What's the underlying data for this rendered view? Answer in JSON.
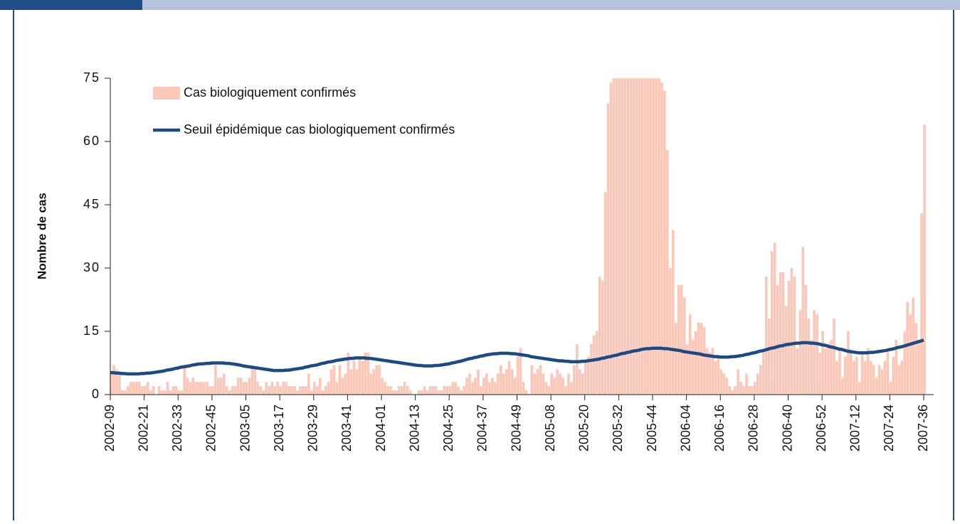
{
  "chart_data": {
    "type": "bar-line",
    "ylabel": "Nombre de cas",
    "ylim": [
      0,
      75
    ],
    "yticks": [
      0,
      15,
      30,
      45,
      60,
      75
    ],
    "categories": [
      "2002-09",
      null,
      null,
      null,
      null,
      null,
      null,
      null,
      null,
      null,
      null,
      null,
      "2002-21",
      null,
      null,
      null,
      null,
      null,
      null,
      null,
      null,
      null,
      null,
      null,
      "2002-33",
      null,
      null,
      null,
      null,
      null,
      null,
      null,
      null,
      null,
      null,
      null,
      "2002-45",
      null,
      null,
      null,
      null,
      null,
      null,
      null,
      null,
      null,
      null,
      null,
      "2003-05",
      null,
      null,
      null,
      null,
      null,
      null,
      null,
      null,
      null,
      null,
      null,
      "2003-17",
      null,
      null,
      null,
      null,
      null,
      null,
      null,
      null,
      null,
      null,
      null,
      "2003-29",
      null,
      null,
      null,
      null,
      null,
      null,
      null,
      null,
      null,
      null,
      null,
      "2003-41",
      null,
      null,
      null,
      null,
      null,
      null,
      null,
      null,
      null,
      null,
      null,
      "2004-01",
      null,
      null,
      null,
      null,
      null,
      null,
      null,
      null,
      null,
      null,
      null,
      "2004-13",
      null,
      null,
      null,
      null,
      null,
      null,
      null,
      null,
      null,
      null,
      null,
      "2004-25",
      null,
      null,
      null,
      null,
      null,
      null,
      null,
      null,
      null,
      null,
      null,
      "2004-37",
      null,
      null,
      null,
      null,
      null,
      null,
      null,
      null,
      null,
      null,
      null,
      "2004-49",
      null,
      null,
      null,
      null,
      null,
      null,
      null,
      null,
      null,
      null,
      null,
      "2005-08",
      null,
      null,
      null,
      null,
      null,
      null,
      null,
      null,
      null,
      null,
      null,
      "2005-20",
      null,
      null,
      null,
      null,
      null,
      null,
      null,
      null,
      null,
      null,
      null,
      "2005-32",
      null,
      null,
      null,
      null,
      null,
      null,
      null,
      null,
      null,
      null,
      null,
      "2005-44",
      null,
      null,
      null,
      null,
      null,
      null,
      null,
      null,
      null,
      null,
      null,
      "2006-04",
      null,
      null,
      null,
      null,
      null,
      null,
      null,
      null,
      null,
      null,
      null,
      "2006-16",
      null,
      null,
      null,
      null,
      null,
      null,
      null,
      null,
      null,
      null,
      null,
      "2006-28",
      null,
      null,
      null,
      null,
      null,
      null,
      null,
      null,
      null,
      null,
      null,
      "2006-40",
      null,
      null,
      null,
      null,
      null,
      null,
      null,
      null,
      null,
      null,
      null,
      "2006-52",
      null,
      null,
      null,
      null,
      null,
      null,
      null,
      null,
      null,
      null,
      null,
      "2007-12",
      null,
      null,
      null,
      null,
      null,
      null,
      null,
      null,
      null,
      null,
      null,
      "2007-24",
      null,
      null,
      null,
      null,
      null,
      null,
      null,
      null,
      null,
      null,
      null,
      "2007-36"
    ],
    "series": [
      {
        "name": "Cas biologiquement confirmés",
        "kind": "bar",
        "color": "#f9c8b8",
        "values": [
          5,
          7,
          6,
          5,
          1,
          1,
          2,
          3,
          3,
          3,
          3,
          2,
          2,
          3,
          1,
          2,
          0,
          2,
          1,
          1,
          3,
          1,
          2,
          2,
          1,
          1,
          7,
          4,
          3,
          4,
          3,
          3,
          3,
          3,
          3,
          2,
          2,
          7,
          4,
          4,
          5,
          2,
          1,
          2,
          2,
          4,
          4,
          3,
          3,
          4,
          7,
          6,
          3,
          2,
          1,
          3,
          2,
          3,
          2,
          3,
          2,
          3,
          3,
          2,
          2,
          2,
          1,
          2,
          2,
          2,
          5,
          1,
          3,
          2,
          4,
          1,
          2,
          3,
          6,
          7,
          3,
          7,
          4,
          5,
          10,
          6,
          8,
          6,
          9,
          8,
          10,
          10,
          5,
          6,
          7,
          7,
          4,
          3,
          2,
          2,
          1,
          1,
          2,
          2,
          3,
          2,
          1,
          0,
          0,
          1,
          1,
          2,
          1,
          2,
          2,
          2,
          1,
          1,
          2,
          2,
          2,
          3,
          3,
          2,
          1,
          2,
          4,
          5,
          3,
          4,
          6,
          2,
          4,
          5,
          3,
          4,
          3,
          5,
          7,
          5,
          6,
          8,
          6,
          4,
          9,
          11,
          3,
          1,
          0,
          7,
          5,
          6,
          7,
          5,
          3,
          2,
          5,
          4,
          6,
          5,
          4,
          2,
          5,
          3,
          7,
          12,
          6,
          5,
          8,
          9,
          12,
          14,
          15,
          28,
          27,
          48,
          69,
          74,
          75,
          75,
          75,
          75,
          75,
          75,
          75,
          75,
          75,
          75,
          75,
          75,
          75,
          75,
          75,
          75,
          75,
          74,
          72,
          58,
          30,
          39,
          17,
          26,
          26,
          23,
          12,
          19,
          13,
          15,
          17,
          17,
          16,
          11,
          10,
          11,
          8,
          9,
          6,
          5,
          4,
          2,
          1,
          2,
          6,
          3,
          2,
          5,
          2,
          2,
          3,
          5,
          7,
          10,
          28,
          18,
          34,
          36,
          26,
          29,
          29,
          21,
          27,
          30,
          28,
          11,
          20,
          35,
          26,
          18,
          13,
          20,
          19,
          10,
          15,
          11,
          12,
          13,
          18,
          8,
          11,
          4,
          9,
          15,
          10,
          8,
          9,
          3,
          10,
          8,
          11,
          8,
          7,
          4,
          7,
          6,
          8,
          10,
          3,
          9,
          13,
          7,
          8,
          15,
          22,
          19,
          23,
          17,
          13,
          43,
          64
        ]
      },
      {
        "name": "Seuil épidémique cas biologiquement confirmés",
        "kind": "line",
        "color": "#1d4a82",
        "values": [
          5.2,
          5.2,
          5.1,
          5.1,
          5.0,
          5.0,
          4.9,
          4.9,
          4.9,
          4.9,
          4.9,
          5.0,
          5.0,
          5.1,
          5.1,
          5.2,
          5.3,
          5.4,
          5.5,
          5.6,
          5.8,
          5.9,
          6.0,
          6.2,
          6.3,
          6.5,
          6.6,
          6.7,
          6.8,
          7.0,
          7.1,
          7.2,
          7.3,
          7.3,
          7.4,
          7.4,
          7.5,
          7.5,
          7.5,
          7.5,
          7.5,
          7.4,
          7.4,
          7.3,
          7.2,
          7.1,
          7.0,
          6.8,
          6.7,
          6.6,
          6.5,
          6.4,
          6.3,
          6.2,
          6.1,
          6.0,
          5.9,
          5.8,
          5.7,
          5.7,
          5.7,
          5.7,
          5.8,
          5.8,
          5.9,
          6.0,
          6.1,
          6.2,
          6.3,
          6.5,
          6.6,
          6.8,
          6.9,
          7.0,
          7.2,
          7.4,
          7.5,
          7.7,
          7.8,
          7.9,
          8.1,
          8.2,
          8.3,
          8.4,
          8.5,
          8.6,
          8.6,
          8.7,
          8.7,
          8.7,
          8.7,
          8.6,
          8.6,
          8.5,
          8.4,
          8.3,
          8.2,
          8.1,
          8.0,
          7.9,
          7.8,
          7.7,
          7.6,
          7.5,
          7.4,
          7.3,
          7.2,
          7.1,
          7.0,
          6.9,
          6.9,
          6.8,
          6.8,
          6.8,
          6.8,
          6.9,
          6.9,
          7.0,
          7.1,
          7.2,
          7.3,
          7.5,
          7.6,
          7.8,
          7.9,
          8.1,
          8.3,
          8.5,
          8.6,
          8.8,
          8.9,
          9.1,
          9.2,
          9.4,
          9.5,
          9.6,
          9.7,
          9.7,
          9.8,
          9.8,
          9.8,
          9.8,
          9.7,
          9.7,
          9.6,
          9.5,
          9.4,
          9.3,
          9.2,
          9.0,
          8.9,
          8.8,
          8.7,
          8.6,
          8.5,
          8.4,
          8.3,
          8.2,
          8.1,
          8.0,
          8.0,
          7.9,
          7.9,
          7.8,
          7.8,
          7.8,
          7.8,
          7.9,
          7.9,
          8.0,
          8.1,
          8.2,
          8.3,
          8.4,
          8.6,
          8.7,
          8.9,
          9.0,
          9.2,
          9.3,
          9.5,
          9.7,
          9.8,
          10.0,
          10.1,
          10.3,
          10.4,
          10.5,
          10.7,
          10.8,
          10.9,
          10.9,
          11.0,
          11.0,
          11.0,
          11.0,
          10.9,
          10.9,
          10.8,
          10.7,
          10.6,
          10.5,
          10.4,
          10.2,
          10.1,
          10.0,
          9.9,
          9.8,
          9.7,
          9.6,
          9.4,
          9.3,
          9.2,
          9.1,
          9.0,
          9.0,
          8.9,
          8.9,
          8.9,
          8.9,
          9.0,
          9.0,
          9.1,
          9.2,
          9.3,
          9.5,
          9.6,
          9.8,
          9.9,
          10.1,
          10.3,
          10.4,
          10.6,
          10.8,
          11.0,
          11.1,
          11.3,
          11.5,
          11.6,
          11.8,
          11.9,
          12.0,
          12.1,
          12.2,
          12.2,
          12.3,
          12.3,
          12.3,
          12.2,
          12.2,
          12.1,
          12.0,
          11.8,
          11.7,
          11.5,
          11.3,
          11.2,
          11.0,
          10.8,
          10.7,
          10.5,
          10.3,
          10.2,
          10.1,
          10.0,
          9.9,
          9.9,
          9.9,
          9.9,
          10.0,
          10.0,
          10.1,
          10.2,
          10.3,
          10.4,
          10.5,
          10.7,
          10.8,
          11.0,
          11.2,
          11.3,
          11.5,
          11.7,
          11.9,
          12.1,
          12.3,
          12.5,
          12.7,
          12.9
        ]
      }
    ]
  }
}
